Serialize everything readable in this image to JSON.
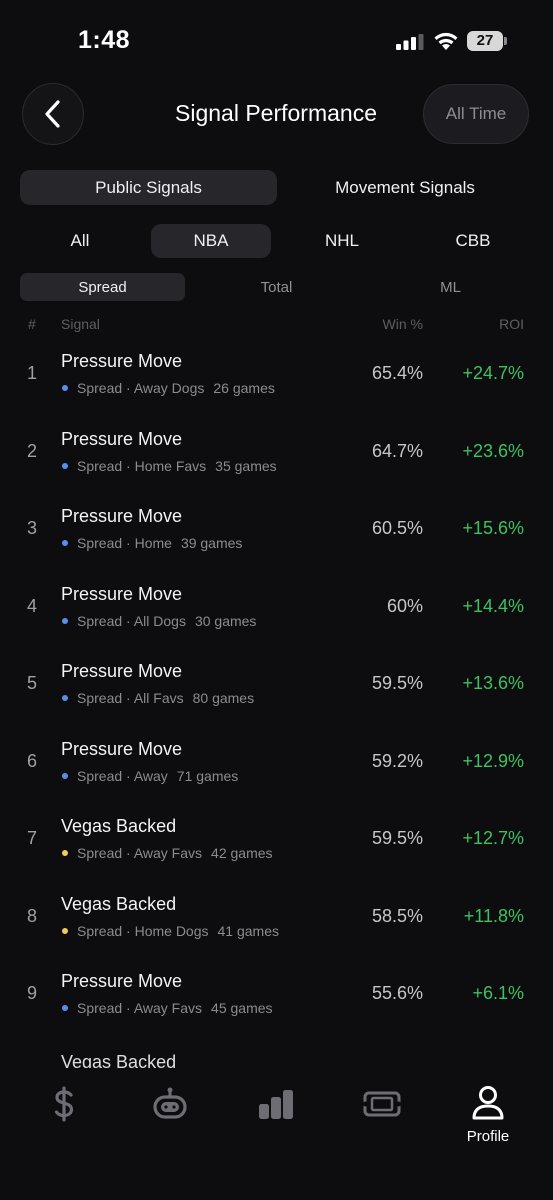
{
  "status_bar": {
    "time": "1:48",
    "battery_level": "27"
  },
  "header": {
    "title": "Signal Performance",
    "time_filter": "All Time"
  },
  "signal_type_tabs": [
    {
      "label": "Public Signals",
      "active": true
    },
    {
      "label": "Movement Signals",
      "active": false
    }
  ],
  "league_tabs": [
    {
      "label": "All",
      "active": false
    },
    {
      "label": "NBA",
      "active": true
    },
    {
      "label": "NHL",
      "active": false
    },
    {
      "label": "CBB",
      "active": false
    }
  ],
  "bet_type_tabs": [
    {
      "label": "Spread",
      "active": true
    },
    {
      "label": "Total",
      "active": false
    },
    {
      "label": "ML",
      "active": false
    }
  ],
  "table": {
    "columns": {
      "rank": "#",
      "signal": "Signal",
      "win": "Win %",
      "roi": "ROI"
    },
    "rows": [
      {
        "rank": "1",
        "name": "Pressure Move",
        "category": "Spread · Away Dogs",
        "games": "26 games",
        "win": "65.4%",
        "roi": "+24.7%",
        "dot_color": "#5b8cf0"
      },
      {
        "rank": "2",
        "name": "Pressure Move",
        "category": "Spread · Home Favs",
        "games": "35 games",
        "win": "64.7%",
        "roi": "+23.6%",
        "dot_color": "#5b8cf0"
      },
      {
        "rank": "3",
        "name": "Pressure Move",
        "category": "Spread · Home",
        "games": "39 games",
        "win": "60.5%",
        "roi": "+15.6%",
        "dot_color": "#5b8cf0"
      },
      {
        "rank": "4",
        "name": "Pressure Move",
        "category": "Spread · All Dogs",
        "games": "30 games",
        "win": "60%",
        "roi": "+14.4%",
        "dot_color": "#5b8cf0"
      },
      {
        "rank": "5",
        "name": "Pressure Move",
        "category": "Spread · All Favs",
        "games": "80 games",
        "win": "59.5%",
        "roi": "+13.6%",
        "dot_color": "#5b8cf0"
      },
      {
        "rank": "6",
        "name": "Pressure Move",
        "category": "Spread · Away",
        "games": "71 games",
        "win": "59.2%",
        "roi": "+12.9%",
        "dot_color": "#5b8cf0"
      },
      {
        "rank": "7",
        "name": "Vegas Backed",
        "category": "Spread · Away Favs",
        "games": "42 games",
        "win": "59.5%",
        "roi": "+12.7%",
        "dot_color": "#f0cd5b"
      },
      {
        "rank": "8",
        "name": "Vegas Backed",
        "category": "Spread · Home Dogs",
        "games": "41 games",
        "win": "58.5%",
        "roi": "+11.8%",
        "dot_color": "#f0cd5b"
      },
      {
        "rank": "9",
        "name": "Pressure Move",
        "category": "Spread · Away Favs",
        "games": "45 games",
        "win": "55.6%",
        "roi": "+6.1%",
        "dot_color": "#5b8cf0"
      }
    ],
    "partial_row_name": "Vegas Backed"
  },
  "tab_bar": {
    "items": [
      {
        "icon": "dollar-icon"
      },
      {
        "icon": "robot-icon"
      },
      {
        "icon": "bar-chart-icon"
      },
      {
        "icon": "ticket-icon"
      },
      {
        "icon": "person-icon",
        "label": "Profile",
        "active": true
      }
    ]
  },
  "colors": {
    "background": "#0d0d0f",
    "positive": "#3ec160",
    "pressure_dot": "#5b8cf0",
    "vegas_dot": "#f0cd5b"
  }
}
